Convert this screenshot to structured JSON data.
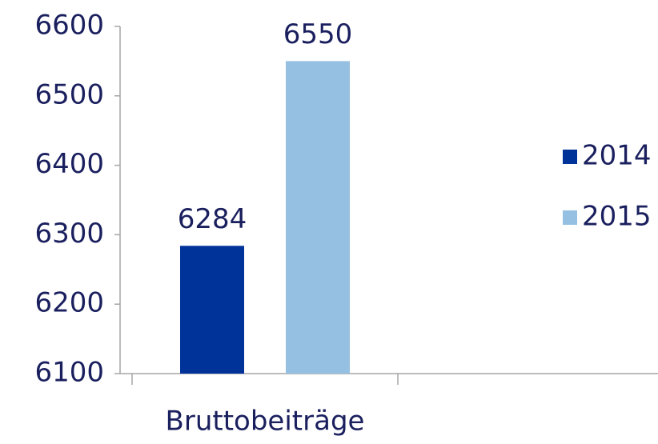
{
  "chart_data": {
    "type": "bar",
    "categories": [
      "Bruttobeiträge"
    ],
    "series": [
      {
        "name": "2014",
        "color": "#003399",
        "values": [
          6284
        ]
      },
      {
        "name": "2015",
        "color": "#95c0e2",
        "values": [
          6550
        ]
      }
    ],
    "ylim": [
      6100,
      6600
    ],
    "yticks": [
      6100,
      6200,
      6300,
      6400,
      6500,
      6600
    ],
    "grid": false,
    "legend": "right"
  }
}
